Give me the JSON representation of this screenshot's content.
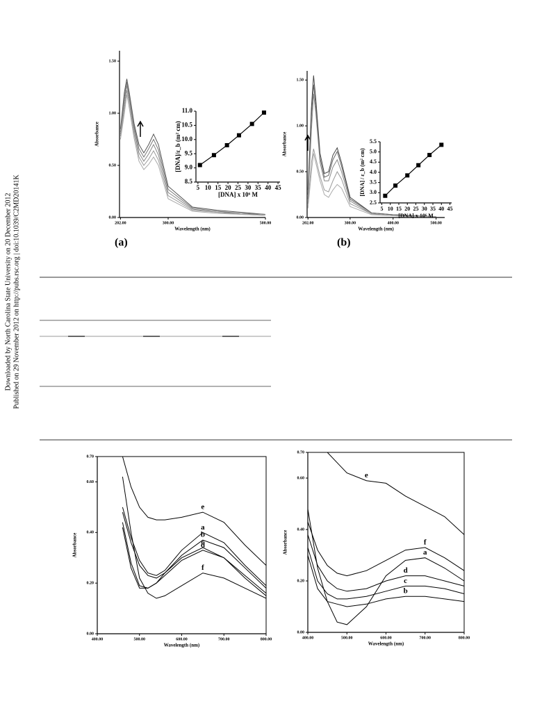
{
  "sidebar": [
    "Downloaded by North Carolina State University on 20 December 2012",
    "Published on 29 November 2012 on http://pubs.rsc.org | doi:10.1039/C2MD20141K"
  ],
  "panel_labels": [
    "(a)",
    "(b)"
  ],
  "chart_data": [
    {
      "type": "line",
      "ylabel": "Absorbance",
      "xlabel": "Wavelength (nm)",
      "xlim": [
        200,
        500
      ],
      "xticks": [
        {
          "value": 202,
          "label": "202.00"
        },
        {
          "value": 300,
          "label": "300.00"
        },
        {
          "value": 500,
          "label": "500.00"
        }
      ],
      "ylim": [
        0,
        1.6
      ],
      "yticks": [
        {
          "value": 0,
          "label": "0.00"
        },
        {
          "value": 0.5,
          "label": "0.50"
        },
        {
          "value": 1,
          "label": "1.00"
        },
        {
          "value": 1.5,
          "label": "1.50"
        }
      ],
      "x": [
        202,
        210,
        215,
        220,
        230,
        240,
        250,
        260,
        270,
        280,
        300,
        350,
        400,
        450,
        500
      ],
      "series": [
        {
          "color": "#555555",
          "values": [
            0.85,
            1.2,
            1.33,
            1.2,
            0.9,
            0.7,
            0.62,
            0.7,
            0.8,
            0.7,
            0.3,
            0.1,
            0.07,
            0.05,
            0.03
          ]
        },
        {
          "color": "#777777",
          "values": [
            0.82,
            1.15,
            1.3,
            1.17,
            0.87,
            0.66,
            0.58,
            0.66,
            0.75,
            0.65,
            0.27,
            0.09,
            0.06,
            0.04,
            0.03
          ]
        },
        {
          "color": "#888888",
          "values": [
            0.8,
            1.1,
            1.27,
            1.13,
            0.84,
            0.62,
            0.54,
            0.61,
            0.7,
            0.6,
            0.24,
            0.08,
            0.05,
            0.04,
            0.02
          ]
        },
        {
          "color": "#999999",
          "values": [
            0.78,
            1.05,
            1.22,
            1.1,
            0.8,
            0.58,
            0.5,
            0.56,
            0.64,
            0.55,
            0.21,
            0.07,
            0.05,
            0.03,
            0.02
          ]
        },
        {
          "color": "#aaaaaa",
          "values": [
            0.75,
            1.0,
            1.18,
            1.05,
            0.76,
            0.54,
            0.46,
            0.51,
            0.58,
            0.5,
            0.18,
            0.06,
            0.04,
            0.03,
            0.02
          ]
        }
      ]
    },
    {
      "type": "line",
      "markers": true,
      "ylabel": "[DNA]/ε_b (m² cm)",
      "xlabel": "[DNA] x 10⁶ M",
      "xlim": [
        4,
        46
      ],
      "xticks": [
        5,
        10,
        15,
        20,
        25,
        30,
        35,
        40,
        45
      ],
      "ylim": [
        8.5,
        11
      ],
      "yticks": [
        8.5,
        {
          "value": 9,
          "label": "9.0"
        },
        9.5,
        {
          "value": 10,
          "label": "10.0"
        },
        10.5,
        {
          "value": 11,
          "label": "11.0"
        }
      ],
      "x": [
        6,
        13,
        19.5,
        25.5,
        32,
        38
      ],
      "series": [
        {
          "color": "#000000",
          "values": [
            9.1,
            9.45,
            9.8,
            10.15,
            10.55,
            10.95
          ]
        }
      ]
    },
    {
      "type": "line",
      "ylabel": "Absorbance",
      "xlabel": "Wavelength (nm)",
      "xlim": [
        200,
        520
      ],
      "xticks": [
        {
          "value": 202,
          "label": "202.00"
        },
        {
          "value": 300,
          "label": "300.00"
        },
        {
          "value": 400,
          "label": "400.00"
        },
        {
          "value": 500,
          "label": "500.00"
        }
      ],
      "ylim": [
        0,
        1.6
      ],
      "yticks": [
        {
          "value": 0,
          "label": "0.00"
        },
        {
          "value": 0.5,
          "label": "0.50"
        },
        {
          "value": 1,
          "label": "1.00"
        },
        {
          "value": 1.5,
          "label": "1.50"
        }
      ],
      "x": [
        202,
        210,
        215,
        220,
        230,
        240,
        250,
        260,
        270,
        280,
        300,
        350,
        400,
        450,
        500
      ],
      "series": [
        {
          "color": "#444444",
          "values": [
            0.3,
            1.2,
            1.55,
            1.3,
            0.7,
            0.48,
            0.5,
            0.68,
            0.76,
            0.6,
            0.22,
            0.05,
            0.03,
            0.02,
            0.01
          ]
        },
        {
          "color": "#666666",
          "values": [
            0.25,
            1.1,
            1.45,
            1.22,
            0.65,
            0.44,
            0.46,
            0.63,
            0.72,
            0.56,
            0.2,
            0.05,
            0.03,
            0.02,
            0.01
          ]
        },
        {
          "color": "#888888",
          "values": [
            0.2,
            0.95,
            1.35,
            1.15,
            0.6,
            0.4,
            0.4,
            0.55,
            0.63,
            0.5,
            0.18,
            0.04,
            0.02,
            0.02,
            0.01
          ]
        },
        {
          "color": "#999999",
          "values": [
            0.15,
            0.6,
            0.75,
            0.65,
            0.45,
            0.3,
            0.28,
            0.4,
            0.5,
            0.42,
            0.15,
            0.04,
            0.02,
            0.01,
            0.01
          ]
        },
        {
          "color": "#aaaaaa",
          "values": [
            0.1,
            0.5,
            0.7,
            0.6,
            0.4,
            0.25,
            0.22,
            0.3,
            0.36,
            0.32,
            0.12,
            0.03,
            0.02,
            0.01,
            0.01
          ]
        }
      ]
    },
    {
      "type": "line",
      "markers": true,
      "ylabel": "[DNA] / ε_b (m² cm)",
      "xlabel": "[DNA] x 10⁶ M",
      "xlim": [
        4,
        46
      ],
      "xticks": [
        5,
        10,
        15,
        20,
        25,
        30,
        35,
        40,
        45
      ],
      "ylim": [
        2.5,
        5.5
      ],
      "yticks": [
        2.5,
        {
          "value": 3,
          "label": "3.0"
        },
        3.5,
        {
          "value": 4,
          "label": "4.0"
        },
        4.5,
        {
          "value": 5,
          "label": "5.0"
        },
        5.5
      ],
      "x": [
        7,
        13,
        20,
        26.5,
        33,
        40
      ],
      "series": [
        {
          "color": "#000000",
          "values": [
            2.85,
            3.35,
            3.85,
            4.35,
            4.85,
            5.35
          ]
        }
      ]
    },
    {
      "type": "line",
      "ylabel": "Absorbance",
      "xlabel": "Wavelength (nm)",
      "xlim": [
        400,
        800
      ],
      "xticks": [
        {
          "value": 400,
          "label": "400.00"
        },
        {
          "value": 500,
          "label": "500.00"
        },
        {
          "value": 600,
          "label": "600.00"
        },
        {
          "value": 700,
          "label": "700.00"
        },
        {
          "value": 800,
          "label": "800.00"
        }
      ],
      "ylim": [
        0,
        0.7
      ],
      "yticks": [
        {
          "value": 0,
          "label": "0.00"
        },
        {
          "value": 0.2,
          "label": "0.20"
        },
        {
          "value": 0.4,
          "label": "0.40"
        },
        {
          "value": 0.6,
          "label": "0.60"
        },
        {
          "value": 0.7,
          "label": "0.70"
        }
      ],
      "x": [
        460,
        480,
        500,
        520,
        540,
        560,
        600,
        650,
        700,
        750,
        800
      ],
      "series": [
        {
          "name": "e",
          "color": "#000000",
          "values": [
            0.7,
            0.58,
            0.5,
            0.46,
            0.45,
            0.45,
            0.46,
            0.48,
            0.44,
            0.35,
            0.27
          ]
        },
        {
          "name": "a",
          "color": "#000000",
          "values": [
            0.5,
            0.38,
            0.29,
            0.24,
            0.23,
            0.25,
            0.33,
            0.4,
            0.36,
            0.27,
            0.19
          ]
        },
        {
          "name": "b",
          "color": "#000000",
          "values": [
            0.48,
            0.36,
            0.27,
            0.23,
            0.22,
            0.24,
            0.31,
            0.37,
            0.34,
            0.26,
            0.18
          ]
        },
        {
          "name": "c",
          "color": "#000000",
          "values": [
            0.42,
            0.26,
            0.18,
            0.18,
            0.2,
            0.24,
            0.3,
            0.34,
            0.3,
            0.23,
            0.16
          ]
        },
        {
          "name": "d",
          "color": "#000000",
          "values": [
            0.44,
            0.28,
            0.19,
            0.18,
            0.2,
            0.23,
            0.29,
            0.33,
            0.3,
            0.22,
            0.15
          ]
        },
        {
          "name": "f",
          "color": "#000000",
          "values": [
            0.62,
            0.4,
            0.22,
            0.16,
            0.14,
            0.15,
            0.19,
            0.24,
            0.22,
            0.18,
            0.14
          ]
        }
      ]
    },
    {
      "type": "line",
      "ylabel": "Absorbance",
      "xlabel": "Wavelength (nm)",
      "xlim": [
        400,
        800
      ],
      "xticks": [
        {
          "value": 400,
          "label": "400.00"
        },
        {
          "value": 500,
          "label": "500.00"
        },
        {
          "value": 600,
          "label": "600.00"
        },
        {
          "value": 700,
          "label": "700.00"
        },
        {
          "value": 800,
          "label": "800.00"
        }
      ],
      "ylim": [
        0,
        0.7
      ],
      "yticks": [
        {
          "value": 0,
          "label": "0.00"
        },
        {
          "value": 0.2,
          "label": "0.20"
        },
        {
          "value": 0.4,
          "label": "0.40"
        },
        {
          "value": 0.6,
          "label": "0.60"
        },
        {
          "value": 0.7,
          "label": "0.70"
        }
      ],
      "x": [
        400,
        425,
        450,
        475,
        500,
        550,
        600,
        650,
        700,
        750,
        800
      ],
      "series": [
        {
          "name": "e",
          "color": "#000000",
          "values": [
            null,
            null,
            0.7,
            0.66,
            0.62,
            0.59,
            0.58,
            0.53,
            0.49,
            0.45,
            0.38
          ]
        },
        {
          "name": "f",
          "color": "#000000",
          "values": [
            0.43,
            0.32,
            0.26,
            0.23,
            0.22,
            0.24,
            0.28,
            0.32,
            0.33,
            0.29,
            0.24
          ]
        },
        {
          "name": "a",
          "color": "#000000",
          "values": [
            0.48,
            0.25,
            0.12,
            0.04,
            0.03,
            0.1,
            0.22,
            0.28,
            0.29,
            0.25,
            0.2
          ]
        },
        {
          "name": "d",
          "color": "#000000",
          "values": [
            0.38,
            0.26,
            0.2,
            0.17,
            0.16,
            0.17,
            0.2,
            0.22,
            0.22,
            0.2,
            0.18
          ]
        },
        {
          "name": "c",
          "color": "#000000",
          "values": [
            0.33,
            0.2,
            0.15,
            0.13,
            0.13,
            0.14,
            0.16,
            0.18,
            0.18,
            0.17,
            0.15
          ]
        },
        {
          "name": "b",
          "color": "#000000",
          "values": [
            0.3,
            0.17,
            0.12,
            0.11,
            0.1,
            0.11,
            0.13,
            0.14,
            0.14,
            0.13,
            0.12
          ]
        }
      ]
    }
  ]
}
